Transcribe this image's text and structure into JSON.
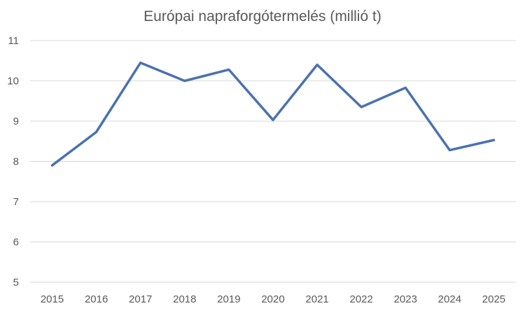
{
  "chart_data": {
    "type": "line",
    "title": "Európai napraforgótermelés (millió t)",
    "xlabel": "",
    "ylabel": "",
    "categories": [
      "2015",
      "2016",
      "2017",
      "2018",
      "2019",
      "2020",
      "2021",
      "2022",
      "2023",
      "2024",
      "2025"
    ],
    "series": [
      {
        "name": "Európai napraforgótermelés",
        "color": "#4a72b0",
        "values": [
          7.9,
          8.73,
          10.45,
          10.0,
          10.28,
          9.03,
          10.4,
          9.35,
          9.83,
          8.28,
          8.53
        ]
      }
    ],
    "ylim": [
      5,
      11
    ],
    "yticks": [
      5,
      6,
      7,
      8,
      9,
      10,
      11
    ],
    "grid": true,
    "gridline_color": "#d9d9d9",
    "legend": "none"
  }
}
